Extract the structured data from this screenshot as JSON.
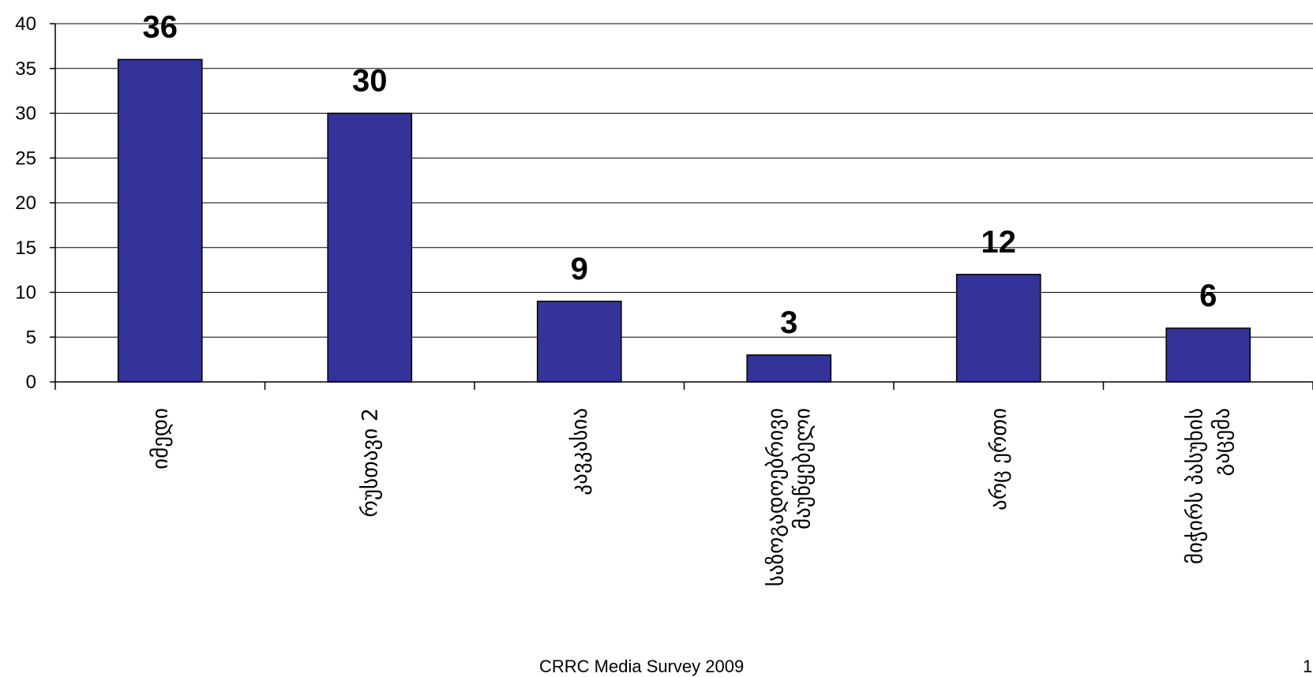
{
  "footer": {
    "text": "CRRC Media Survey 2009",
    "page_number": "1"
  },
  "colors": {
    "bar": "#333399",
    "bar_border": "#000000",
    "grid": "#000000",
    "background": "#ffffff"
  },
  "chart_data": {
    "type": "bar",
    "title": "",
    "xlabel": "",
    "ylabel": "",
    "ylim": [
      0,
      40
    ],
    "yticks": [
      0,
      5,
      10,
      15,
      20,
      25,
      30,
      35,
      40
    ],
    "grid": true,
    "legend": "none",
    "categories": [
      [
        "იმედი"
      ],
      [
        "რუსთავი 2"
      ],
      [
        "კავკასია"
      ],
      [
        "საზოგადოებრივი",
        "მაუწყებელი"
      ],
      [
        "არც ერთი"
      ],
      [
        "მიჭირს პასუხის",
        "გაცემა"
      ]
    ],
    "values": [
      36,
      30,
      9,
      3,
      12,
      6
    ],
    "data_labels": [
      "36",
      "30",
      "9",
      "3",
      "12",
      "6"
    ]
  }
}
